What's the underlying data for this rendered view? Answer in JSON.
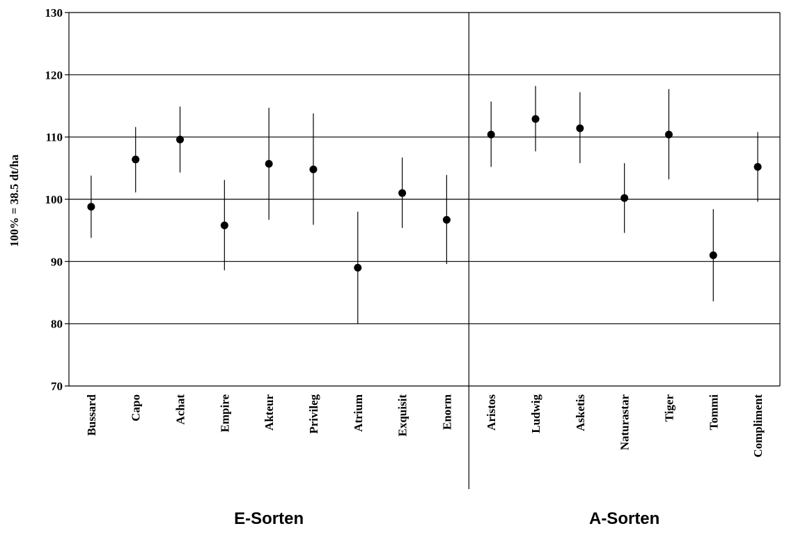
{
  "chart_data": {
    "type": "scatter",
    "ylabel": "100% = 38.5  dt/ha",
    "ylim": [
      70,
      130
    ],
    "yticks": [
      70,
      80,
      90,
      100,
      110,
      120,
      130
    ],
    "grid": "horizontal",
    "groups": [
      {
        "label": "E-Sorten",
        "points": [
          {
            "name": "Bussard",
            "value": 98.8,
            "low": 93.8,
            "high": 103.8
          },
          {
            "name": "Capo",
            "value": 106.4,
            "low": 101.1,
            "high": 111.6
          },
          {
            "name": "Achat",
            "value": 109.6,
            "low": 104.3,
            "high": 114.9
          },
          {
            "name": "Empire",
            "value": 95.8,
            "low": 88.6,
            "high": 103.1
          },
          {
            "name": "Akteur",
            "value": 105.7,
            "low": 96.7,
            "high": 114.7
          },
          {
            "name": "Privileg",
            "value": 104.8,
            "low": 95.9,
            "high": 113.8
          },
          {
            "name": "Atrium",
            "value": 89.0,
            "low": 80.0,
            "high": 98.0
          },
          {
            "name": "Exquisit",
            "value": 101.0,
            "low": 95.4,
            "high": 106.7
          },
          {
            "name": "Enorm",
            "value": 96.7,
            "low": 89.6,
            "high": 103.9
          }
        ]
      },
      {
        "label": "A-Sorten",
        "points": [
          {
            "name": "Aristos",
            "value": 110.4,
            "low": 105.2,
            "high": 115.7
          },
          {
            "name": "Ludwig",
            "value": 112.9,
            "low": 107.7,
            "high": 118.2
          },
          {
            "name": "Asketis",
            "value": 111.4,
            "low": 105.8,
            "high": 117.2
          },
          {
            "name": "Naturastar",
            "value": 100.2,
            "low": 94.6,
            "high": 105.8
          },
          {
            "name": "Tiger",
            "value": 110.4,
            "low": 103.2,
            "high": 117.7
          },
          {
            "name": "Tommi",
            "value": 91.0,
            "low": 83.6,
            "high": 98.4
          },
          {
            "name": "Compliment",
            "value": 105.2,
            "low": 99.6,
            "high": 110.8
          }
        ]
      }
    ]
  }
}
